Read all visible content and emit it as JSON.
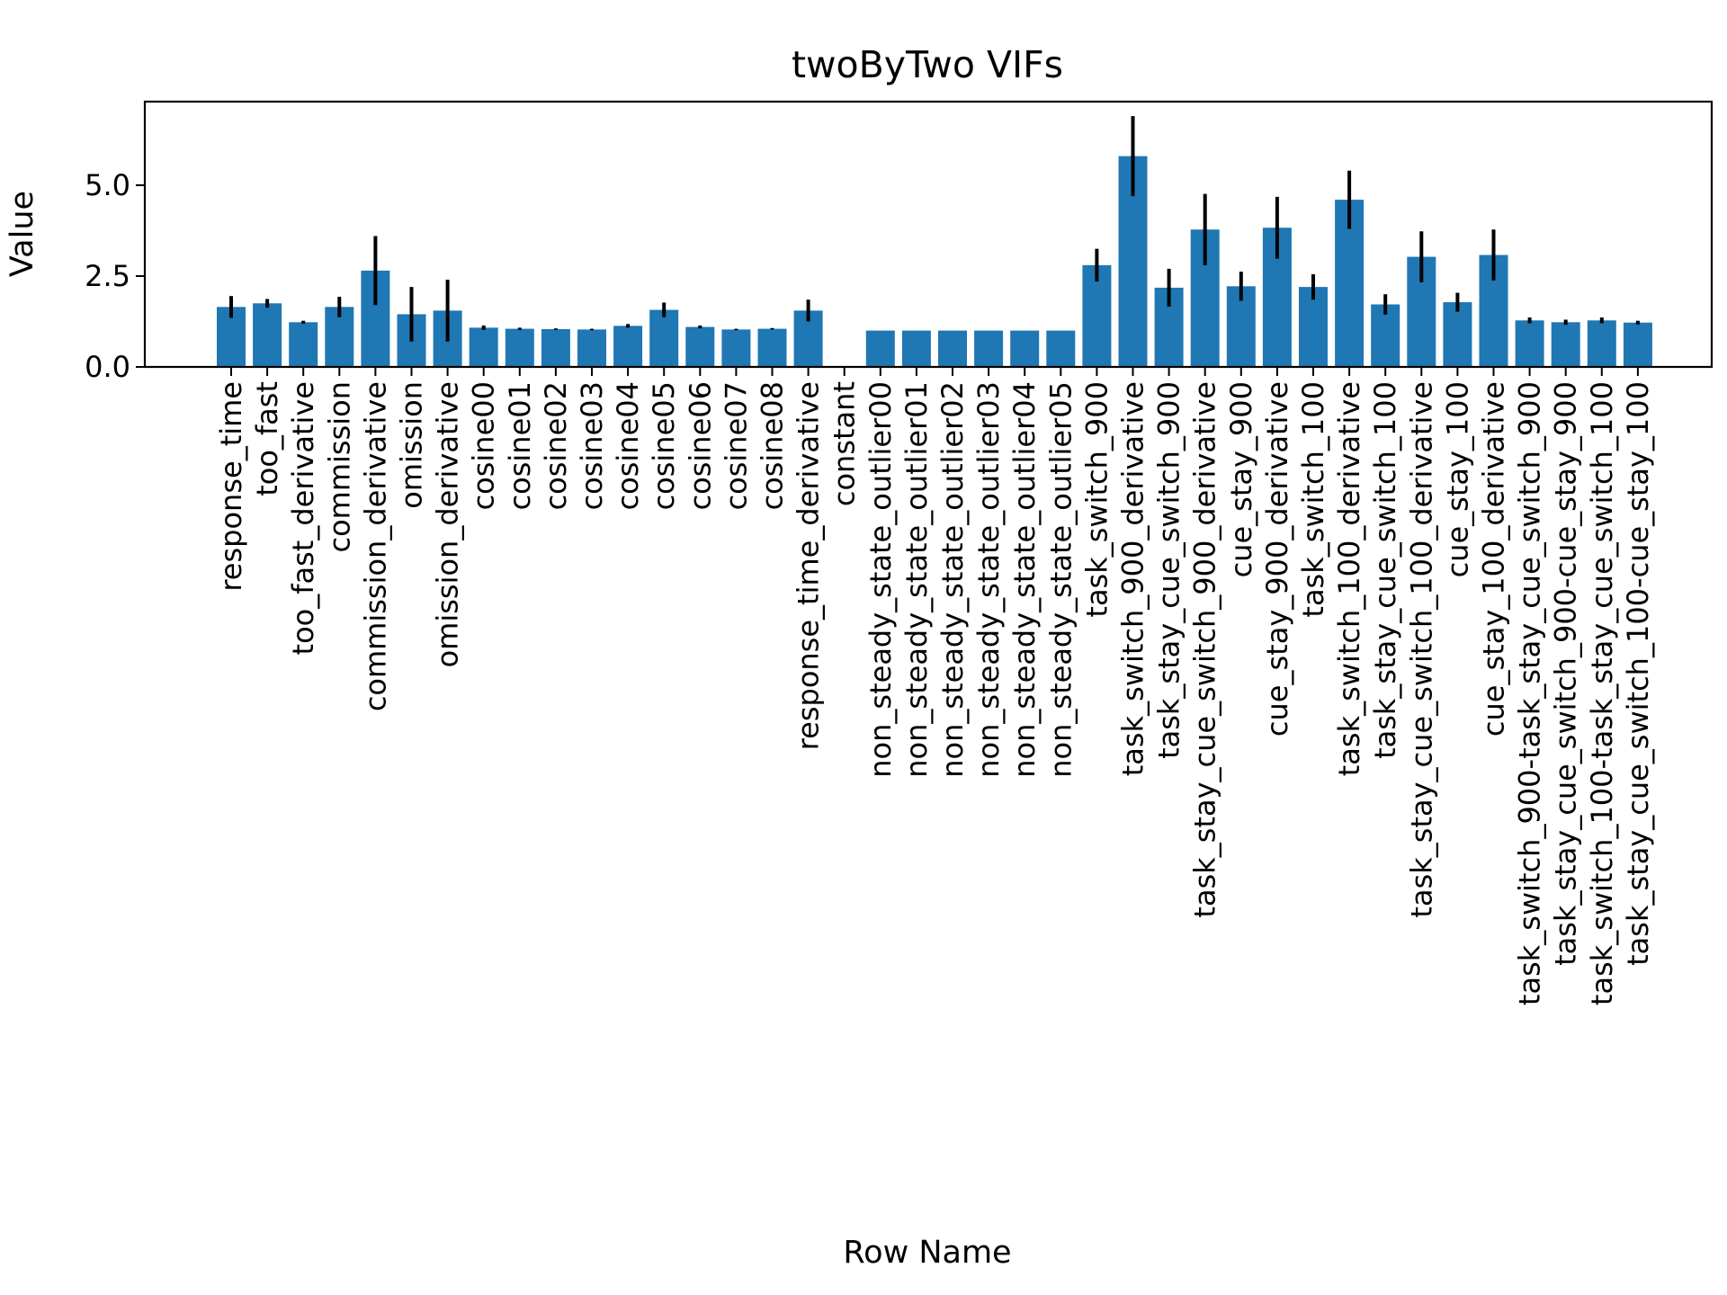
{
  "chart_data": {
    "type": "bar",
    "title": "twoByTwo VIFs",
    "xlabel": "Row Name",
    "ylabel": "Value",
    "ylim": [
      0,
      7.3
    ],
    "yticks": [
      "0.0",
      "2.5",
      "5.0"
    ],
    "ytick_values": [
      0,
      2.5,
      5.0
    ],
    "bar_color": "#1f77b4",
    "errorbar_color": "#000000",
    "categories": [
      "response_time",
      "too_fast",
      "too_fast_derivative",
      "commission",
      "commission_derivative",
      "omission",
      "omission_derivative",
      "cosine00",
      "cosine01",
      "cosine02",
      "cosine03",
      "cosine04",
      "cosine05",
      "cosine06",
      "cosine07",
      "cosine08",
      "response_time_derivative",
      "constant",
      "non_steady_state_outlier00",
      "non_steady_state_outlier01",
      "non_steady_state_outlier02",
      "non_steady_state_outlier03",
      "non_steady_state_outlier04",
      "non_steady_state_outlier05",
      "task_switch_900",
      "task_switch_900_derivative",
      "task_stay_cue_switch_900",
      "task_stay_cue_switch_900_derivative",
      "cue_stay_900",
      "cue_stay_900_derivative",
      "task_switch_100",
      "task_switch_100_derivative",
      "task_stay_cue_switch_100",
      "task_stay_cue_switch_100_derivative",
      "cue_stay_100",
      "cue_stay_100_derivative",
      "task_switch_900-task_stay_cue_switch_900",
      "task_stay_cue_switch_900-cue_stay_900",
      "task_switch_100-task_stay_cue_switch_100",
      "task_stay_cue_switch_100-cue_stay_100"
    ],
    "values": [
      1.65,
      1.75,
      1.23,
      1.65,
      2.65,
      1.45,
      1.55,
      1.08,
      1.05,
      1.04,
      1.03,
      1.13,
      1.57,
      1.1,
      1.03,
      1.05,
      1.55,
      null,
      1.0,
      1.0,
      1.0,
      1.0,
      1.0,
      1.0,
      2.8,
      5.8,
      2.18,
      3.78,
      2.22,
      3.83,
      2.2,
      4.6,
      1.72,
      3.03,
      1.78,
      3.08,
      1.28,
      1.23,
      1.28,
      1.22
    ],
    "errors": [
      0.3,
      0.12,
      0.04,
      0.28,
      0.95,
      0.75,
      0.85,
      0.06,
      0.03,
      0.02,
      0.02,
      0.05,
      0.2,
      0.04,
      0.02,
      0.02,
      0.3,
      null,
      0.0,
      0.0,
      0.0,
      0.0,
      0.0,
      0.0,
      0.45,
      1.1,
      0.52,
      0.98,
      0.4,
      0.85,
      0.35,
      0.8,
      0.28,
      0.7,
      0.26,
      0.7,
      0.08,
      0.07,
      0.08,
      0.05
    ]
  }
}
